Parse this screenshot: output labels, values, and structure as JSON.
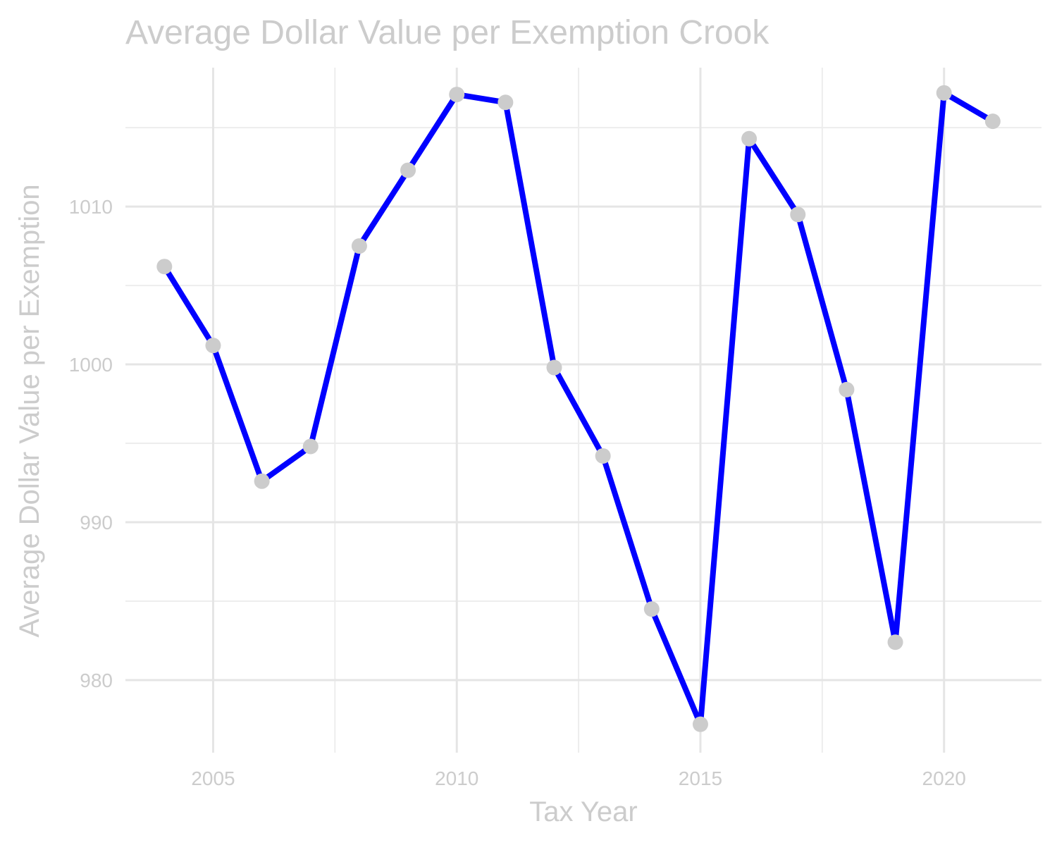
{
  "chart_data": {
    "type": "line",
    "title": "Average Dollar Value per Exemption Crook",
    "xlabel": "Tax Year",
    "ylabel": "Average Dollar Value per Exemption",
    "xlim": [
      2003.2,
      2022.0
    ],
    "ylim": [
      975.4,
      1018.8
    ],
    "x_ticks": [
      2005,
      2010,
      2015,
      2020
    ],
    "x_minor_ticks": [
      2007.5,
      2012.5,
      2017.5
    ],
    "y_ticks": [
      980,
      990,
      1000,
      1010
    ],
    "y_minor_ticks": [
      985,
      995,
      1005,
      1015
    ],
    "grid": true,
    "legend": "none",
    "x": [
      2004,
      2005,
      2006,
      2007,
      2008,
      2009,
      2010,
      2011,
      2012,
      2013,
      2014,
      2015,
      2016,
      2017,
      2018,
      2019,
      2020,
      2021
    ],
    "series": [
      {
        "values": [
          1006.2,
          1001.2,
          992.6,
          994.8,
          1007.5,
          1012.3,
          1017.1,
          1016.6,
          999.8,
          994.2,
          984.5,
          977.2,
          1014.3,
          1009.5,
          998.4,
          982.4,
          1017.2,
          1015.4
        ],
        "line_color": "#0000ff",
        "point_color": "#cccccc"
      }
    ]
  }
}
